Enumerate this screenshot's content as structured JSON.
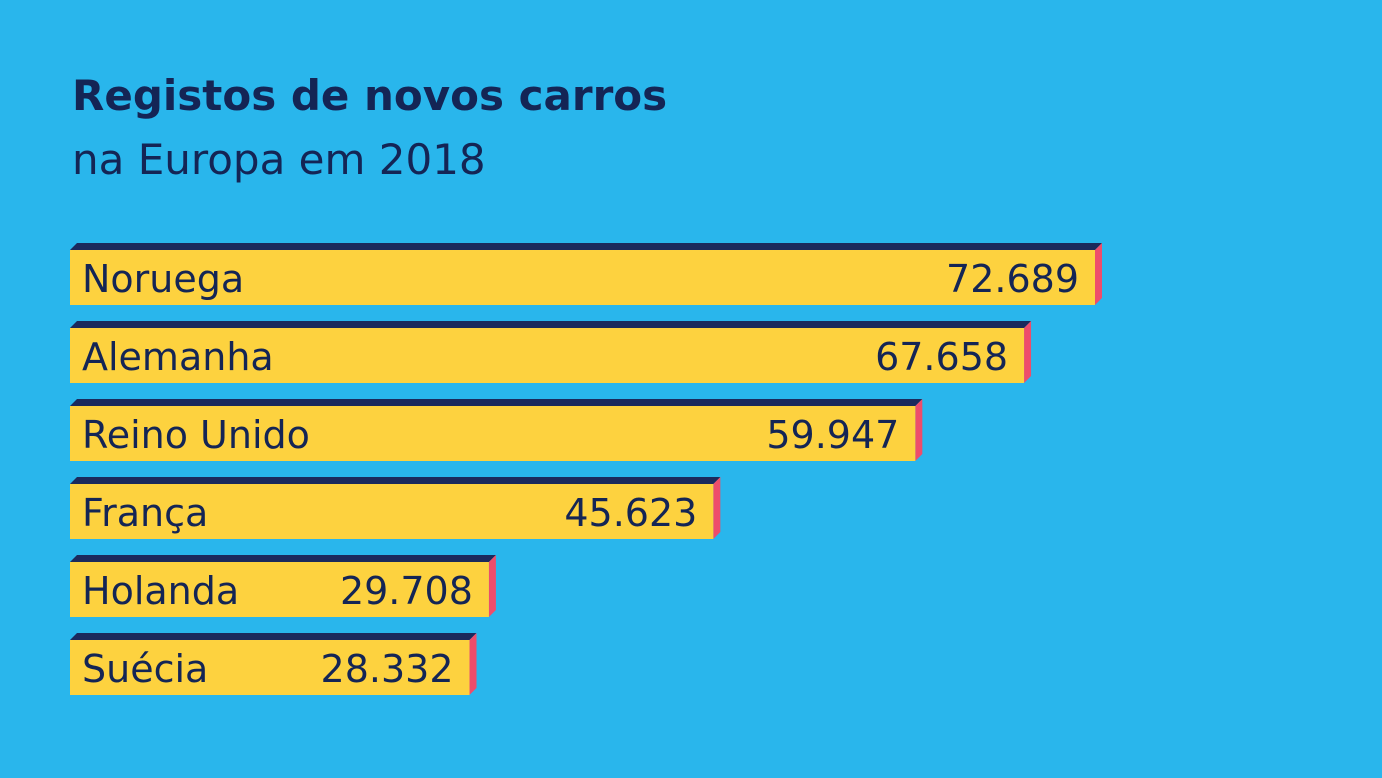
{
  "colors": {
    "background": "#29B6EC",
    "bar": "#FDD23F",
    "bar_top": "#1B2A5C",
    "bar_side": "#EE4D6B",
    "text": "#142555"
  },
  "chart_data": {
    "type": "bar",
    "orientation": "horizontal",
    "title": "Registos de novos carros",
    "subtitle": "na Europa em 2018",
    "categories": [
      "Noruega",
      "Alemanha",
      "Reino Unido",
      "França",
      "Holanda",
      "Suécia"
    ],
    "values": [
      72689,
      67658,
      59947,
      45623,
      29708,
      28332
    ],
    "value_labels": [
      "72.689",
      "67.658",
      "59.947",
      "45.623",
      "29.708",
      "28.332"
    ],
    "xlim": [
      0,
      72689
    ],
    "grid": false,
    "legend": "none"
  }
}
